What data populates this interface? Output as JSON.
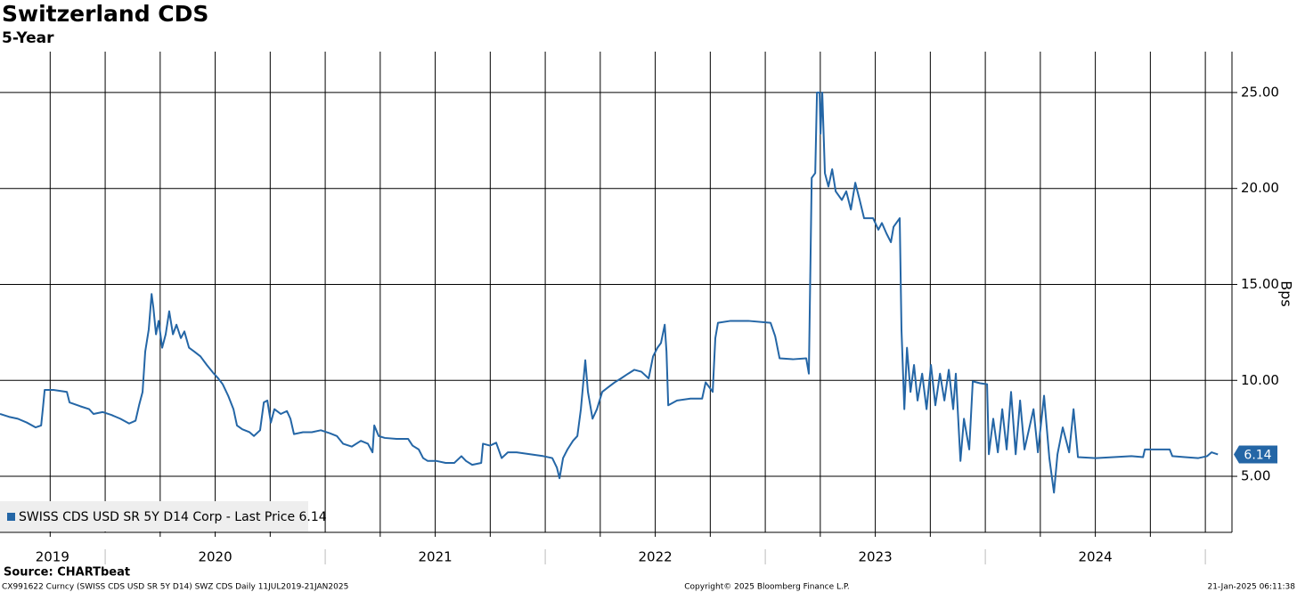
{
  "chart_data": {
    "type": "line",
    "title": "Switzerland CDS",
    "subtitle": "5-Year",
    "y_axis_label": "Bps",
    "source": "Source: CHARTbeat",
    "footer": [
      "CX991622 Curncy (SWISS CDS USD SR 5Y D14) SWZ CDS  Daily 11JUL2019-21JAN2025",
      "Copyright© 2025 Bloomberg Finance L.P.",
      "21-Jan-2025 06:11:38"
    ],
    "grid": true,
    "legend": "bottom-left",
    "xlim": [
      2019.522,
      2025.121
    ],
    "xticks": [
      {
        "value": 2019.76,
        "label": "2019"
      },
      {
        "value": 2020.5,
        "label": "2020"
      },
      {
        "value": 2021.5,
        "label": "2021"
      },
      {
        "value": 2022.5,
        "label": "2022"
      },
      {
        "value": 2023.5,
        "label": "2023"
      },
      {
        "value": 2024.5,
        "label": "2024"
      }
    ],
    "xgrid": [
      2019.75,
      2020,
      2020.25,
      2020.5,
      2020.75,
      2021,
      2021.25,
      2021.5,
      2021.75,
      2022,
      2022.25,
      2022.5,
      2022.75,
      2023,
      2023.25,
      2023.5,
      2023.75,
      2024,
      2024.25,
      2024.5,
      2024.75,
      2025
    ],
    "ylim": [
      2.08,
      27.13
    ],
    "yticks": [
      {
        "value": 5,
        "label": "5.00"
      },
      {
        "value": 10,
        "label": "10.00"
      },
      {
        "value": 15,
        "label": "15.00"
      },
      {
        "value": 20,
        "label": "20.00"
      },
      {
        "value": 25,
        "label": "25.00"
      }
    ],
    "x": [
      2019.522,
      2019.563,
      2019.603,
      2019.644,
      2019.684,
      2019.709,
      2019.717,
      2019.725,
      2019.765,
      2019.826,
      2019.838,
      2019.887,
      2019.927,
      2019.947,
      2019.988,
      2020.028,
      2020.069,
      2020.109,
      2020.138,
      2020.154,
      2020.17,
      2020.182,
      2020.198,
      2020.211,
      2020.219,
      2020.231,
      2020.243,
      2020.259,
      2020.275,
      2020.291,
      2020.308,
      2020.324,
      2020.344,
      2020.36,
      2020.381,
      2020.405,
      2020.433,
      2020.462,
      2020.494,
      2020.514,
      2020.534,
      2020.559,
      2020.583,
      2020.599,
      2020.623,
      2020.656,
      2020.676,
      2020.704,
      2020.721,
      2020.737,
      2020.753,
      2020.769,
      2020.798,
      2020.826,
      2020.842,
      2020.858,
      2020.899,
      2020.939,
      2020.98,
      2021.02,
      2021.053,
      2021.081,
      2021.121,
      2021.162,
      2021.194,
      2021.215,
      2021.223,
      2021.243,
      2021.271,
      2021.324,
      2021.377,
      2021.397,
      2021.425,
      2021.445,
      2021.466,
      2021.506,
      2021.547,
      2021.587,
      2021.619,
      2021.64,
      2021.668,
      2021.709,
      2021.717,
      2021.749,
      2021.777,
      2021.802,
      2021.83,
      2021.87,
      2021.931,
      2021.992,
      2022.032,
      2022.053,
      2022.065,
      2022.081,
      2022.101,
      2022.126,
      2022.146,
      2022.162,
      2022.182,
      2022.194,
      2022.215,
      2022.235,
      2022.259,
      2022.287,
      2022.316,
      2022.344,
      2022.377,
      2022.405,
      2022.437,
      2022.47,
      2022.49,
      2022.51,
      2022.526,
      2022.543,
      2022.551,
      2022.559,
      2022.599,
      2022.66,
      2022.713,
      2022.729,
      2022.761,
      2022.773,
      2022.785,
      2022.842,
      2022.923,
      2023.024,
      2023.045,
      2023.065,
      2023.126,
      2023.186,
      2023.198,
      2023.211,
      2023.227,
      2023.235,
      2023.247,
      2023.251,
      2023.259,
      2023.271,
      2023.287,
      2023.304,
      2023.32,
      2023.348,
      2023.368,
      2023.389,
      2023.409,
      2023.429,
      2023.449,
      2023.49,
      2023.514,
      2023.53,
      2023.551,
      2023.571,
      2023.583,
      2023.611,
      2023.619,
      2023.632,
      2023.644,
      2023.66,
      2023.676,
      2023.692,
      2023.713,
      2023.733,
      2023.753,
      2023.773,
      2023.794,
      2023.814,
      2023.834,
      2023.854,
      2023.866,
      2023.887,
      2023.903,
      2023.927,
      2023.943,
      2023.976,
      2024.008,
      2024.016,
      2024.036,
      2024.057,
      2024.077,
      2024.097,
      2024.117,
      2024.138,
      2024.158,
      2024.178,
      2024.219,
      2024.239,
      2024.267,
      2024.291,
      2024.312,
      2024.328,
      2024.352,
      2024.381,
      2024.401,
      2024.421,
      2024.502,
      2024.583,
      2024.664,
      2024.717,
      2024.725,
      2024.785,
      2024.838,
      2024.85,
      2024.907,
      2024.968,
      2025.008,
      2025.028,
      2025.057
    ],
    "series": [
      {
        "name": "SWISS CDS USD SR 5Y D14 Corp - Last Price 6.14",
        "color": "#2466a6",
        "values": [
          8.25,
          8.1,
          8.0,
          7.8,
          7.55,
          7.65,
          8.55,
          9.5,
          9.5,
          9.4,
          8.85,
          8.65,
          8.5,
          8.25,
          8.35,
          8.2,
          8.0,
          7.75,
          7.9,
          8.7,
          9.4,
          11.5,
          12.65,
          14.5,
          13.8,
          12.4,
          13.1,
          11.7,
          12.4,
          13.6,
          12.4,
          12.9,
          12.2,
          12.55,
          11.7,
          11.5,
          11.25,
          10.8,
          10.35,
          10.1,
          9.8,
          9.2,
          8.5,
          7.65,
          7.45,
          7.3,
          7.1,
          7.4,
          8.85,
          8.95,
          7.8,
          8.5,
          8.25,
          8.4,
          8.0,
          7.2,
          7.3,
          7.3,
          7.4,
          7.25,
          7.1,
          6.7,
          6.55,
          6.85,
          6.7,
          6.25,
          7.65,
          7.1,
          7.0,
          6.95,
          6.95,
          6.6,
          6.4,
          5.95,
          5.8,
          5.8,
          5.7,
          5.7,
          6.05,
          5.8,
          5.6,
          5.7,
          6.7,
          6.6,
          6.75,
          5.95,
          6.25,
          6.25,
          6.15,
          6.05,
          5.95,
          5.45,
          4.9,
          5.95,
          6.4,
          6.85,
          7.1,
          8.5,
          11.05,
          9.4,
          8.0,
          8.5,
          9.4,
          9.65,
          9.9,
          10.1,
          10.35,
          10.55,
          10.45,
          10.1,
          11.25,
          11.7,
          11.95,
          12.9,
          11.5,
          8.7,
          8.95,
          9.05,
          9.05,
          9.9,
          9.4,
          12.2,
          13.0,
          13.1,
          13.1,
          13.0,
          12.3,
          11.15,
          11.1,
          11.15,
          10.35,
          20.55,
          20.8,
          25.0,
          25.0,
          22.85,
          25.0,
          20.8,
          20.1,
          21.0,
          19.85,
          19.4,
          19.85,
          18.9,
          20.3,
          19.4,
          18.45,
          18.45,
          17.85,
          18.2,
          17.65,
          17.2,
          18.0,
          18.45,
          12.65,
          8.5,
          11.7,
          9.4,
          10.8,
          8.95,
          10.35,
          8.5,
          10.8,
          8.7,
          10.35,
          8.95,
          10.55,
          8.5,
          10.35,
          5.8,
          8.0,
          6.4,
          9.95,
          9.85,
          9.8,
          6.15,
          8.0,
          6.25,
          8.5,
          6.4,
          9.4,
          6.15,
          8.95,
          6.4,
          8.5,
          6.25,
          9.2,
          5.95,
          4.15,
          6.15,
          7.55,
          6.25,
          8.5,
          6.0,
          5.95,
          6.0,
          6.05,
          6.0,
          6.4,
          6.4,
          6.4,
          6.05,
          6.0,
          5.95,
          6.05,
          6.25,
          6.14
        ]
      }
    ]
  }
}
